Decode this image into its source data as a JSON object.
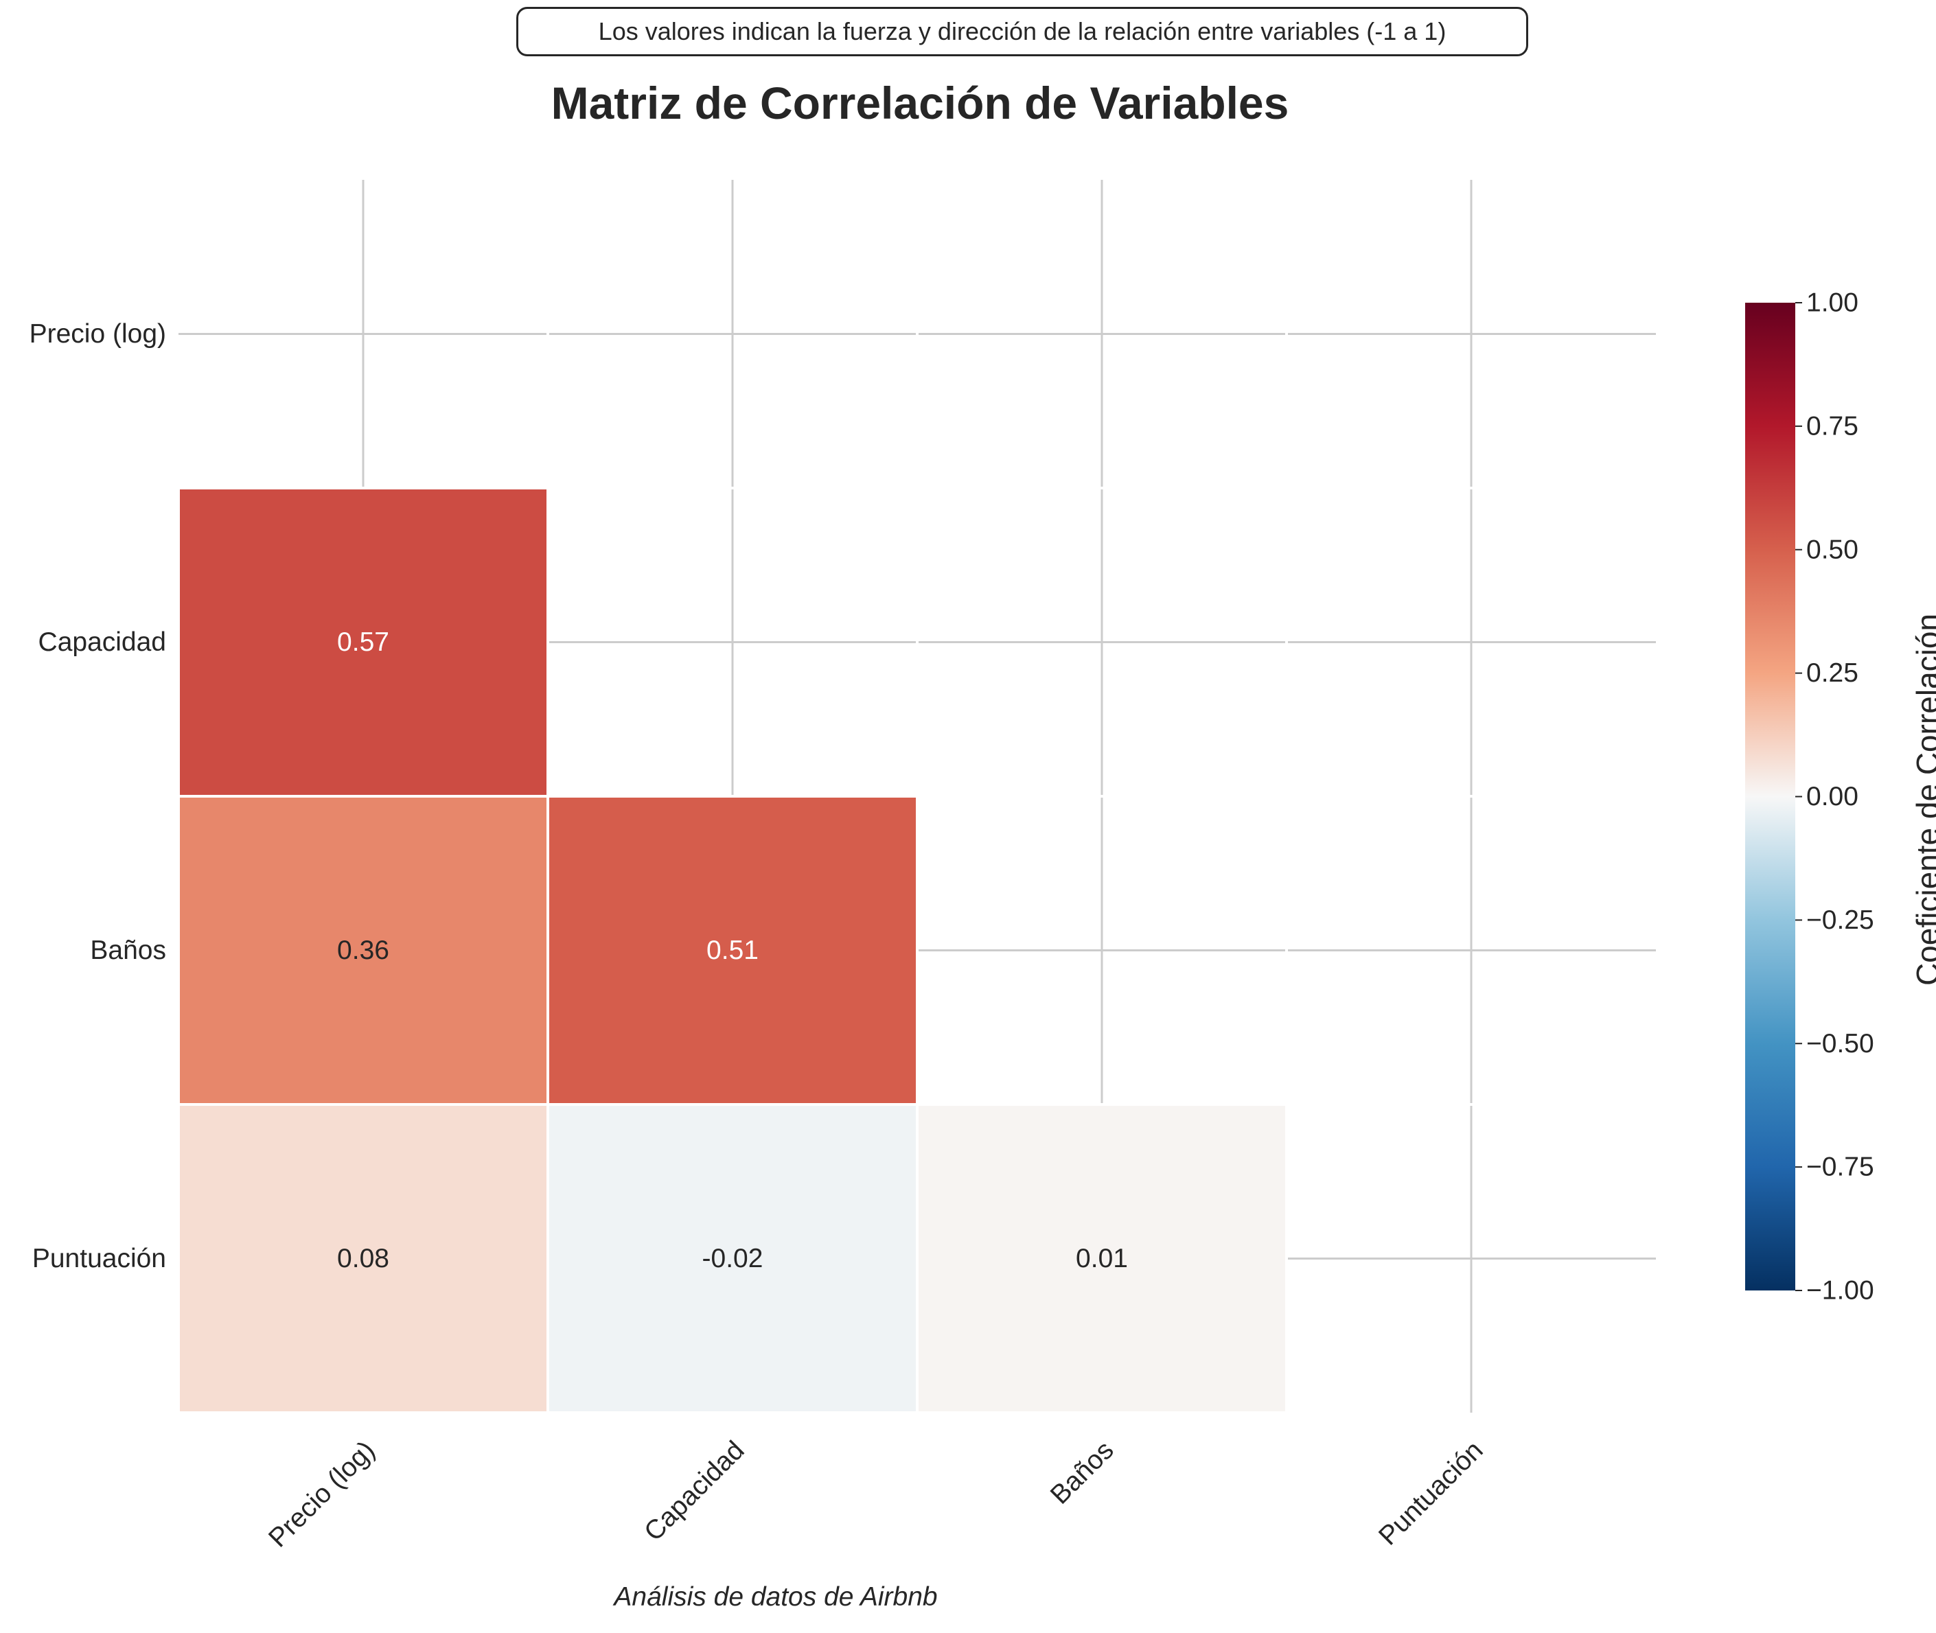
{
  "note": "Los valores indican la fuerza y dirección de la relación entre variables (-1 a 1)",
  "title": "Matriz de Correlación de Variables",
  "footer": "Análisis de datos de Airbnb",
  "colorbar": {
    "label": "Coeficiente de Correlación",
    "range": [
      -1,
      1
    ],
    "ticks": [
      "1.00",
      "0.75",
      "0.50",
      "0.25",
      "0.00",
      "−0.25",
      "−0.50",
      "−0.75",
      "−1.00"
    ],
    "colormap": "RdBu_r"
  },
  "chart_data": {
    "type": "heatmap",
    "title": "Matriz de Correlación de Variables",
    "variables": [
      "Precio (log)",
      "Capacidad",
      "Baños",
      "Puntuación"
    ],
    "mask": "upper-triangle-and-diagonal",
    "cells": [
      {
        "row": "Capacidad",
        "col": "Precio (log)",
        "value": 0.57,
        "label": "0.57"
      },
      {
        "row": "Baños",
        "col": "Precio (log)",
        "value": 0.36,
        "label": "0.36"
      },
      {
        "row": "Baños",
        "col": "Capacidad",
        "value": 0.51,
        "label": "0.51"
      },
      {
        "row": "Puntuación",
        "col": "Precio (log)",
        "value": 0.08,
        "label": "0.08"
      },
      {
        "row": "Puntuación",
        "col": "Capacidad",
        "value": -0.02,
        "label": "-0.02"
      },
      {
        "row": "Puntuación",
        "col": "Baños",
        "value": 0.01,
        "label": "0.01"
      }
    ],
    "vmin": -1,
    "vmax": 1,
    "grid": true
  }
}
